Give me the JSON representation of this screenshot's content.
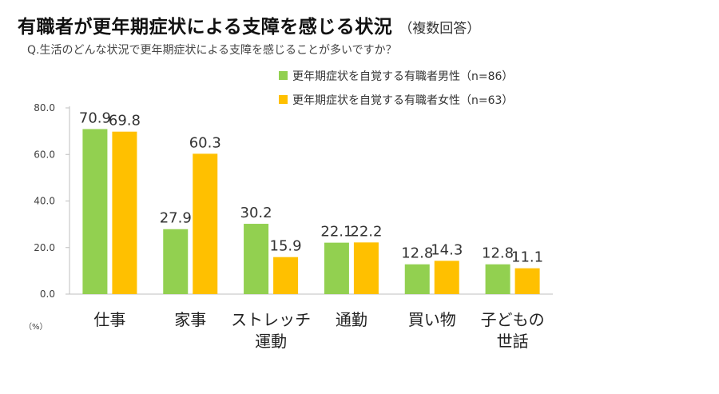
{
  "title": "有職者が更年期症状による支障を感じる状況",
  "title_note": "（複数回答）",
  "question": "Q.生活のどんな状況で更年期症状による支障を感じることが多いですか？",
  "colors": {
    "male": "#92d050",
    "female": "#ffc000",
    "axis": "#bfbfbf",
    "text": "#404040"
  },
  "chart_data": {
    "type": "bar",
    "unit_label": "（%）",
    "categories": [
      [
        "仕事"
      ],
      [
        "家事"
      ],
      [
        "ストレッチ",
        "運動"
      ],
      [
        "通勤"
      ],
      [
        "買い物"
      ],
      [
        "子どもの",
        "世話"
      ]
    ],
    "series": [
      {
        "name": "更年期症状を自覚する有職者男性（n=86）",
        "values": [
          70.9,
          27.9,
          30.2,
          22.1,
          12.8,
          12.8
        ]
      },
      {
        "name": "更年期症状を自覚する有職者女性（n=63）",
        "values": [
          69.8,
          60.3,
          15.9,
          22.2,
          14.3,
          11.1
        ]
      }
    ],
    "y_ticks": [
      "0.0",
      "20.0",
      "40.0",
      "60.0",
      "80.0"
    ],
    "ylim": [
      0,
      80
    ],
    "legend_position": "top-right",
    "grid": false
  }
}
